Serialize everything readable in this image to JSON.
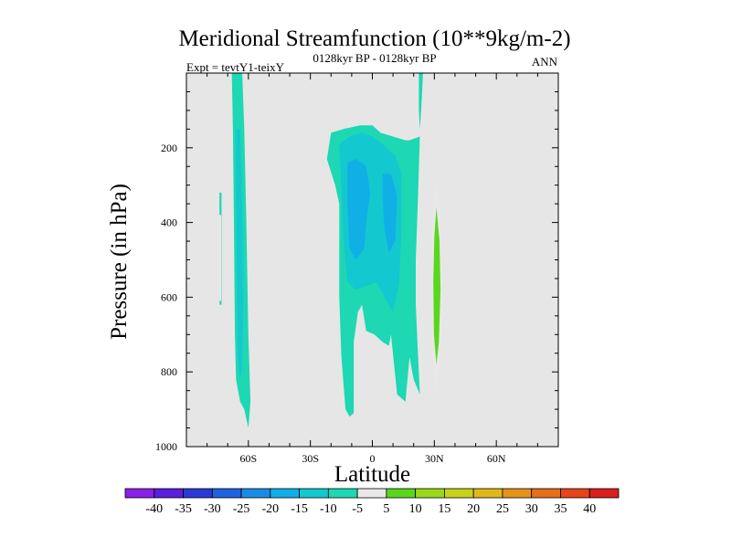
{
  "chart_data": {
    "type": "contour",
    "title": "Meridional Streamfunction (10**9kg/m-2)",
    "subtitle": "0128kyr BP - 0128kyr BP",
    "experiment": "Expt = tevtY1-teixY",
    "season": "ANN",
    "xlabel": "Latitude",
    "ylabel": "Pressure (in hPa)",
    "xlim": [
      -90,
      90
    ],
    "ylim": [
      1000,
      0
    ],
    "x_ticks": [
      {
        "value": -60,
        "label": "60S"
      },
      {
        "value": -30,
        "label": "30S"
      },
      {
        "value": 0,
        "label": "0"
      },
      {
        "value": 30,
        "label": "30N"
      },
      {
        "value": 60,
        "label": "60N"
      }
    ],
    "y_ticks": [
      {
        "value": 200,
        "label": "200"
      },
      {
        "value": 400,
        "label": "400"
      },
      {
        "value": 600,
        "label": "600"
      },
      {
        "value": 800,
        "label": "800"
      },
      {
        "value": 1000,
        "label": "1000"
      }
    ],
    "background_color": "#e6e6e6",
    "colorbar": {
      "levels": [
        -40,
        -35,
        -30,
        -25,
        -20,
        -15,
        -10,
        -5,
        5,
        10,
        15,
        20,
        25,
        30,
        35,
        40
      ],
      "labels": [
        "-40",
        "-35",
        "-30",
        "-25",
        "-20",
        "-15",
        "-10",
        "-5",
        "5",
        "10",
        "15",
        "20",
        "25",
        "30",
        "35",
        "40"
      ],
      "colors": [
        "#8a1fe6",
        "#5a1edc",
        "#2a3ad6",
        "#1f62e0",
        "#1a8ce6",
        "#10afe6",
        "#13c8cf",
        "#1dd8b2",
        "#e8e8e8",
        "#5ad61e",
        "#9ad81a",
        "#c8d21a",
        "#e0b81a",
        "#e69418",
        "#e66f1a",
        "#e6441a",
        "#d81e1e"
      ]
    },
    "regions": [
      {
        "name": "sh-polar-weak-band",
        "level": -5,
        "outline": [
          [
            -74,
            320
          ],
          [
            -73,
            320
          ],
          [
            -73,
            620
          ],
          [
            -74,
            620
          ]
        ]
      },
      {
        "name": "sh-polar-weak-band-fill",
        "level": 5,
        "outline": [
          [
            -74.5,
            380
          ],
          [
            -73.2,
            380
          ],
          [
            -73.2,
            610
          ],
          [
            -74.5,
            610
          ]
        ]
      },
      {
        "name": "sh-midlat-cell-outer",
        "level": -5,
        "outline": [
          [
            -68,
            0
          ],
          [
            -63,
            0
          ],
          [
            -62,
            150
          ],
          [
            -61,
            400
          ],
          [
            -60,
            700
          ],
          [
            -59,
            880
          ],
          [
            -60,
            950
          ],
          [
            -62,
            900
          ],
          [
            -64,
            880
          ],
          [
            -66,
            820
          ],
          [
            -66.5,
            700
          ],
          [
            -67,
            400
          ],
          [
            -67.5,
            150
          ]
        ]
      },
      {
        "name": "sh-midlat-cell-inner",
        "level": -10,
        "outline": [
          [
            -66,
            150
          ],
          [
            -64,
            150
          ],
          [
            -63,
            350
          ],
          [
            -62.5,
            600
          ],
          [
            -63,
            780
          ],
          [
            -64,
            820
          ],
          [
            -65,
            760
          ],
          [
            -65.5,
            550
          ],
          [
            -66,
            350
          ]
        ]
      },
      {
        "name": "tropical-cell-outer",
        "level": -5,
        "outline": [
          [
            -22,
            230
          ],
          [
            -20,
            160
          ],
          [
            -14,
            150
          ],
          [
            -6,
            140
          ],
          [
            0,
            140
          ],
          [
            4,
            160
          ],
          [
            10,
            170
          ],
          [
            16,
            180
          ],
          [
            18,
            180
          ],
          [
            23,
            170
          ],
          [
            22,
            350
          ],
          [
            21,
            500
          ],
          [
            21,
            620
          ],
          [
            22,
            740
          ],
          [
            23,
            860
          ],
          [
            20,
            820
          ],
          [
            18,
            760
          ],
          [
            16,
            880
          ],
          [
            12,
            860
          ],
          [
            9,
            700
          ],
          [
            8,
            730
          ],
          [
            5,
            720
          ],
          [
            1,
            700
          ],
          [
            -3,
            690
          ],
          [
            -5,
            620
          ],
          [
            -7,
            640
          ],
          [
            -9,
            720
          ],
          [
            -9,
            910
          ],
          [
            -11,
            920
          ],
          [
            -13,
            900
          ],
          [
            -15,
            760
          ],
          [
            -16,
            600
          ],
          [
            -16,
            350
          ],
          [
            -18,
            300
          ]
        ]
      },
      {
        "name": "tropical-cell-mid",
        "level": -10,
        "outline": [
          [
            -16,
            190
          ],
          [
            -11,
            170
          ],
          [
            -5,
            160
          ],
          [
            0,
            170
          ],
          [
            5,
            190
          ],
          [
            11,
            220
          ],
          [
            14,
            270
          ],
          [
            14,
            420
          ],
          [
            13,
            560
          ],
          [
            10,
            640
          ],
          [
            6,
            600
          ],
          [
            2,
            560
          ],
          [
            -3,
            570
          ],
          [
            -8,
            580
          ],
          [
            -12,
            560
          ],
          [
            -14,
            450
          ],
          [
            -15,
            300
          ]
        ]
      },
      {
        "name": "tropical-cell-inner",
        "level": -15,
        "outline": [
          [
            -12,
            240
          ],
          [
            -8,
            230
          ],
          [
            -3,
            250
          ],
          [
            -1,
            320
          ],
          [
            -3,
            400
          ],
          [
            -4,
            470
          ],
          [
            -8,
            500
          ],
          [
            -11,
            470
          ],
          [
            -12,
            360
          ]
        ]
      },
      {
        "name": "tropical-cell-inner-2",
        "level": -15,
        "outline": [
          [
            5,
            270
          ],
          [
            9,
            270
          ],
          [
            12,
            330
          ],
          [
            11,
            450
          ],
          [
            8,
            480
          ],
          [
            6,
            420
          ],
          [
            5,
            340
          ]
        ]
      },
      {
        "name": "nh-upper-sliver",
        "level": -5,
        "outline": [
          [
            22.5,
            0
          ],
          [
            24.5,
            0
          ],
          [
            24,
            60
          ],
          [
            23.5,
            110
          ],
          [
            23,
            150
          ],
          [
            22.5,
            100
          ]
        ]
      },
      {
        "name": "nh-subtropical-cell-outer",
        "level": 5,
        "outline": [
          [
            31,
            300
          ],
          [
            33,
            380
          ],
          [
            34,
            550
          ],
          [
            33.5,
            700
          ],
          [
            32,
            800
          ],
          [
            31,
            860
          ],
          [
            30,
            820
          ],
          [
            29,
            700
          ],
          [
            28.5,
            550
          ],
          [
            29,
            400
          ],
          [
            30,
            330
          ]
        ]
      },
      {
        "name": "nh-subtropical-cell-inner",
        "level": 10,
        "outline": [
          [
            31,
            360
          ],
          [
            32.5,
            450
          ],
          [
            33,
            580
          ],
          [
            32.2,
            720
          ],
          [
            31,
            780
          ],
          [
            29.8,
            700
          ],
          [
            29.5,
            560
          ],
          [
            30,
            440
          ]
        ]
      }
    ]
  }
}
